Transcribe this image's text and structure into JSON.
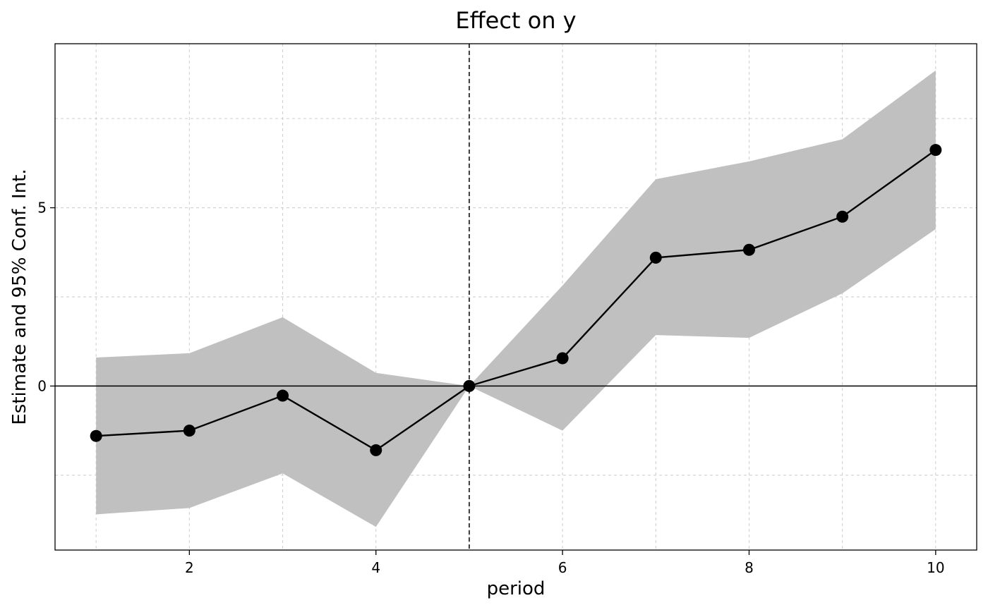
{
  "chart_data": {
    "type": "line",
    "title": "Effect on y",
    "xlabel": "period",
    "ylabel": "Estimate and 95% Conf. Int.",
    "xlim": [
      0.56,
      10.44
    ],
    "ylim": [
      -4.6,
      9.6
    ],
    "x_ticks": [
      2,
      4,
      6,
      8,
      10
    ],
    "y_ticks": [
      0,
      5
    ],
    "y_minor_grid": [
      -2.5,
      2.5,
      7.5
    ],
    "grid": true,
    "reference_lines": {
      "vertical_x": 5,
      "horizontal_y": 0
    },
    "colors": {
      "line": "#000000",
      "band": "#c0c0c0",
      "grid": "#cccccc"
    },
    "series": [
      {
        "x": [
          1,
          2,
          3,
          4,
          5,
          6,
          7,
          8,
          9,
          10
        ],
        "estimate": [
          -1.4,
          -1.25,
          -0.27,
          -1.8,
          0.0,
          0.78,
          3.6,
          3.82,
          4.75,
          6.62
        ],
        "ci_low": [
          -3.6,
          -3.42,
          -2.45,
          -3.95,
          0.0,
          -1.25,
          1.43,
          1.35,
          2.6,
          4.4
        ],
        "ci_high": [
          0.8,
          0.92,
          1.93,
          0.37,
          0.0,
          2.82,
          5.8,
          6.3,
          6.92,
          8.85
        ]
      }
    ]
  }
}
